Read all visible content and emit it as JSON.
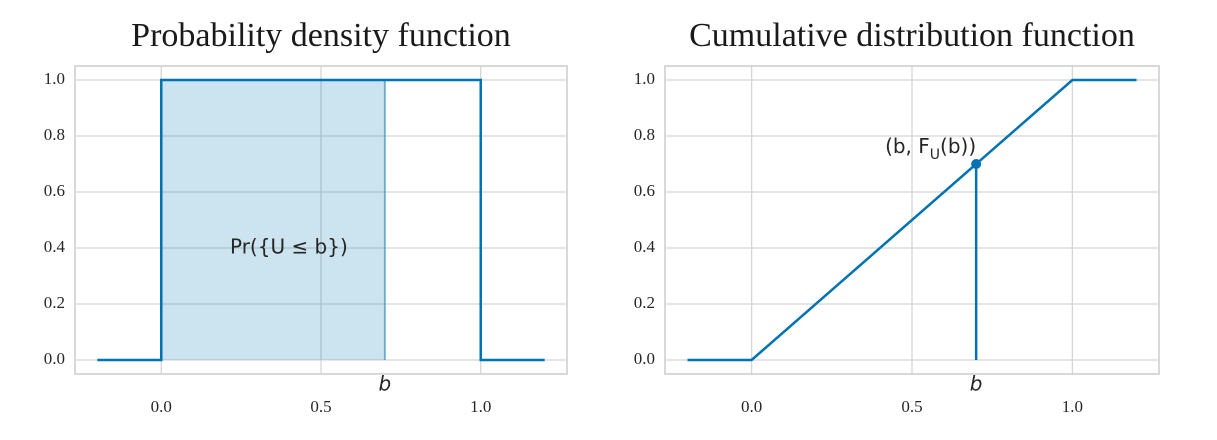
{
  "chart_data": [
    {
      "type": "line",
      "title": "Probability density function",
      "x": [
        -0.2,
        0,
        0,
        1,
        1,
        1.2
      ],
      "series": [
        {
          "color": "#0173b2",
          "values": [
            0,
            0,
            1,
            1,
            0,
            0
          ]
        }
      ],
      "shade": {
        "from": 0,
        "height": 1
      },
      "marker": {
        "x": 0.7,
        "label": "b"
      },
      "annotation": "Pr({U ≤ b})",
      "xlim": [
        -0.27,
        1.27
      ],
      "ylim": [
        -0.05,
        1.05
      ],
      "xticks": [
        {
          "value": 0,
          "label": "0.0"
        },
        0.5,
        {
          "value": 1,
          "label": "1.0"
        }
      ],
      "yticks": [
        {
          "value": 0,
          "label": "0.0"
        },
        0.2,
        0.4,
        0.6,
        0.8,
        {
          "value": 1,
          "label": "1.0"
        }
      ],
      "grid": true
    },
    {
      "type": "line",
      "title": "Cumulative distribution function",
      "x": [
        -0.2,
        0,
        1,
        1.2
      ],
      "series": [
        {
          "color": "#0173b2",
          "values": [
            0,
            0,
            1,
            1
          ]
        }
      ],
      "marker": {
        "x": 0.7,
        "y": 0.7,
        "label": "b",
        "point_label": [
          "(b, F",
          "U",
          "(b))"
        ]
      },
      "xlim": [
        -0.27,
        1.27
      ],
      "ylim": [
        -0.05,
        1.05
      ],
      "xticks": [
        {
          "value": 0,
          "label": "0.0"
        },
        0.5,
        {
          "value": 1,
          "label": "1.0"
        }
      ],
      "yticks": [
        {
          "value": 0,
          "label": "0.0"
        },
        0.2,
        0.4,
        0.6,
        0.8,
        {
          "value": 1,
          "label": "1.0"
        }
      ],
      "grid": true
    }
  ]
}
